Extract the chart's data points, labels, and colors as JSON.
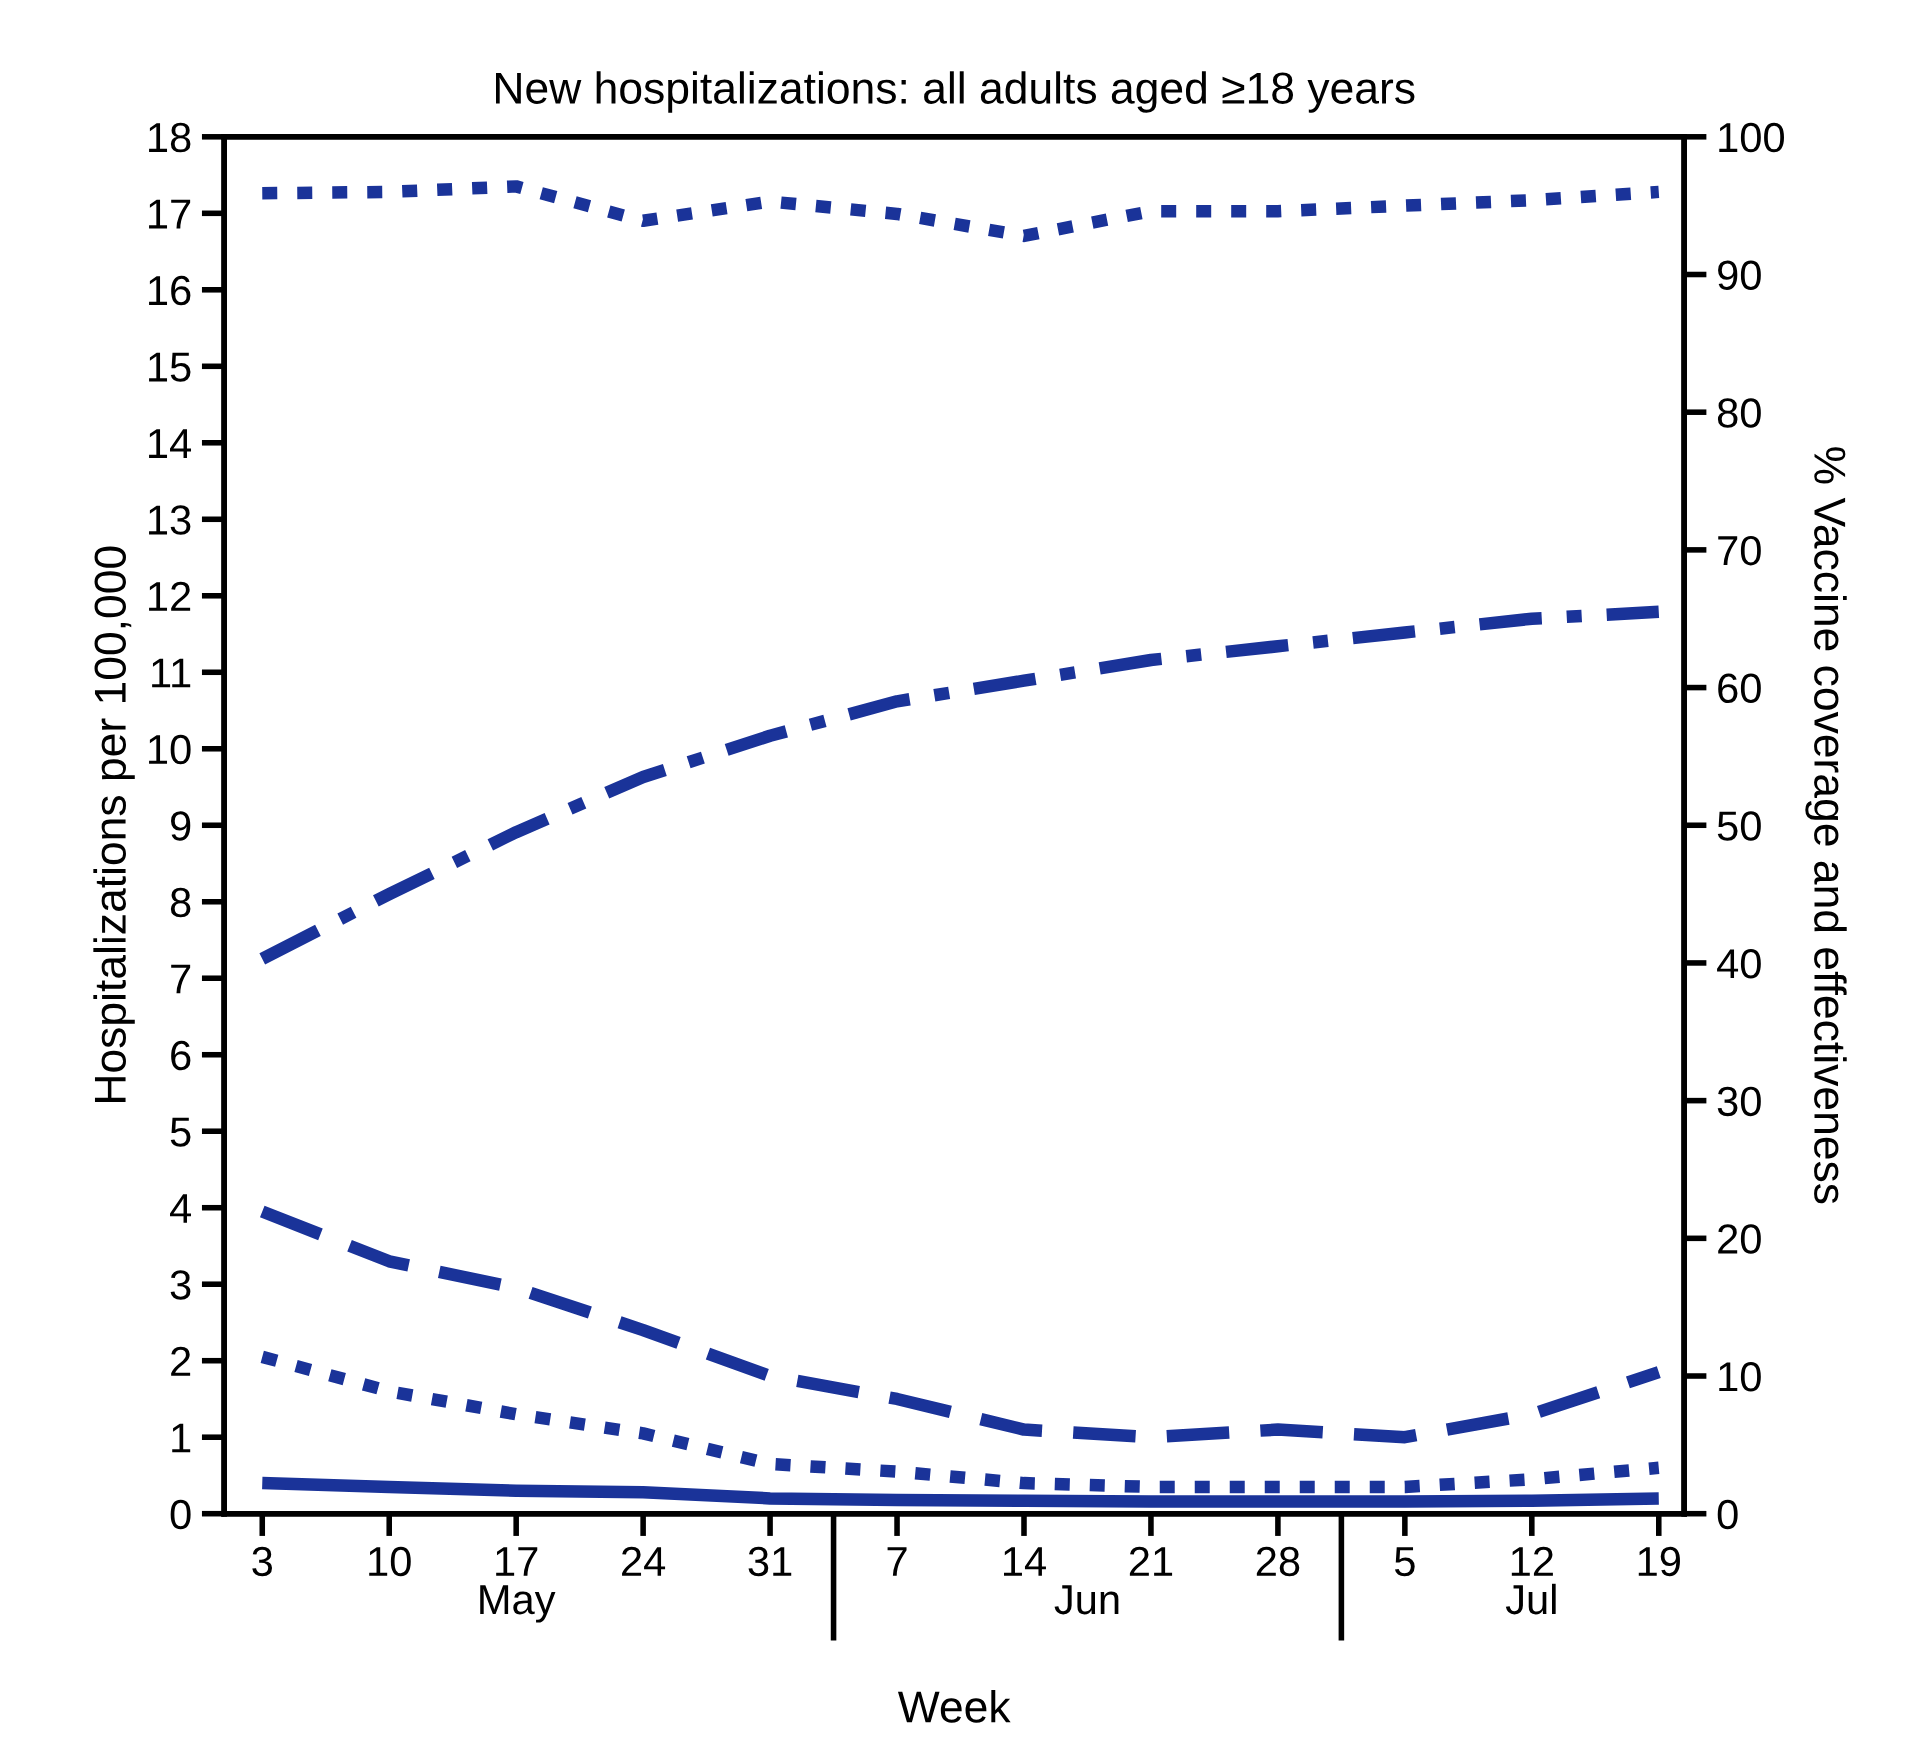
{
  "chart_data": {
    "type": "line",
    "title": "New hospitalizations: all adults aged ≥18 years",
    "xlabel": "Week",
    "ylabel": "Hospitalizations per 100,000",
    "y2label": "% Vaccine coverage and effectiveness",
    "categories": [
      "3",
      "10",
      "17",
      "24",
      "31",
      "7",
      "14",
      "21",
      "28",
      "5",
      "12",
      "19"
    ],
    "annotations": [
      "May",
      "Jun",
      "Jul"
    ],
    "ylim": [
      0,
      18
    ],
    "yticks": [
      0,
      1,
      2,
      3,
      4,
      5,
      6,
      7,
      8,
      9,
      10,
      11,
      12,
      13,
      14,
      15,
      16,
      17,
      18
    ],
    "y2lim": [
      0,
      100
    ],
    "y2ticks": [
      0,
      10,
      20,
      30,
      40,
      50,
      60,
      70,
      80,
      90,
      100
    ],
    "grid": false,
    "marker": "none",
    "series": [
      {
        "color": "#1a3399",
        "axis": "y2",
        "line_style": "dotted",
        "values": [
          95.9,
          96.0,
          96.4,
          93.9,
          95.3,
          94.4,
          92.8,
          94.6,
          94.6,
          95.0,
          95.4,
          96.0
        ]
      },
      {
        "color": "#1a3399",
        "axis": "y2",
        "line_style": "dashdot",
        "values": [
          40.3,
          45.0,
          49.5,
          53.5,
          56.5,
          59.0,
          60.5,
          62.0,
          63.0,
          64.0,
          65.0,
          65.5
        ]
      },
      {
        "color": "#1a3399",
        "line_style": "dashed",
        "values": [
          3.95,
          3.3,
          2.95,
          2.4,
          1.8,
          1.5,
          1.1,
          1.0,
          1.1,
          1.0,
          1.3,
          1.85
        ]
      },
      {
        "color": "#1a3399",
        "line_style": "dotted",
        "values": [
          2.05,
          1.6,
          1.3,
          1.05,
          0.65,
          0.55,
          0.4,
          0.35,
          0.35,
          0.35,
          0.45,
          0.6
        ]
      },
      {
        "color": "#1a3399",
        "line_style": "solid",
        "values": [
          0.4,
          0.35,
          0.3,
          0.28,
          0.2,
          0.18,
          0.17,
          0.16,
          0.16,
          0.16,
          0.17,
          0.2
        ]
      }
    ]
  }
}
